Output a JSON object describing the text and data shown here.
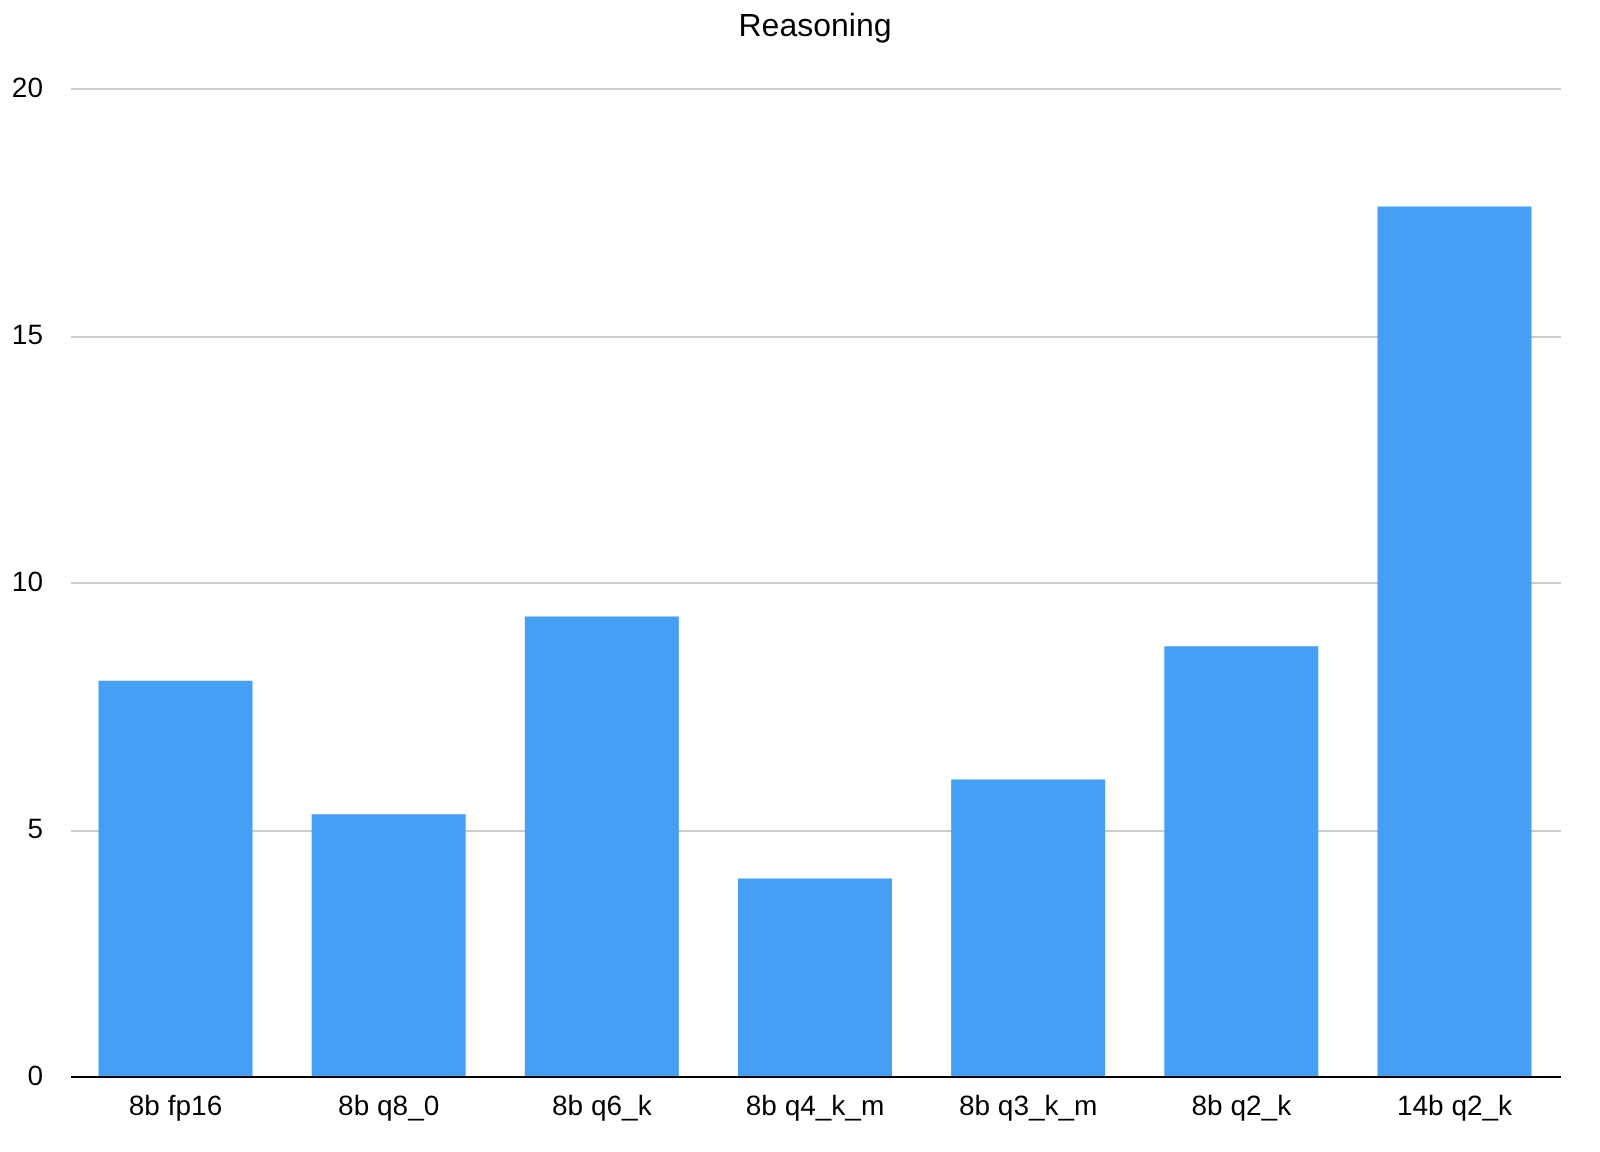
{
  "chart_data": {
    "type": "bar",
    "title": "Reasoning",
    "categories": [
      "8b fp16",
      "8b q8_0",
      "8b q6_k",
      "8b q4_k_m",
      "8b q3_k_m",
      "8b q2_k",
      "14b q2_k"
    ],
    "values": [
      8.0,
      5.3,
      9.3,
      4.0,
      6.0,
      8.7,
      17.6
    ],
    "color": "#459ff5",
    "ylim": [
      0,
      20
    ],
    "yticks": [
      0,
      5,
      10,
      15,
      20
    ],
    "grid": "y"
  }
}
